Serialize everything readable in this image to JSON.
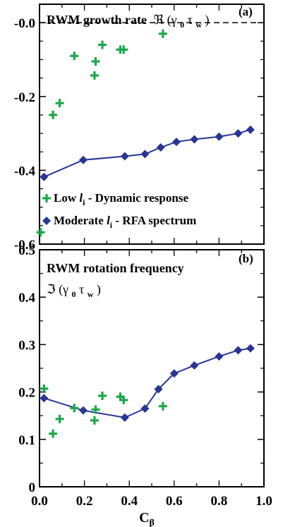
{
  "chart_data": [
    {
      "type": "scatter",
      "panel": "(a)",
      "title": "RWM growth rate",
      "title_symbol": "ℜ",
      "title_args": "(γ",
      "title_sub0": "0",
      "title_tau": " τ",
      "title_subw": "w",
      "title_close": ")",
      "xlim": [
        0.0,
        1.0
      ],
      "ylim": [
        -0.6,
        0.05
      ],
      "yticks": [
        0.0,
        -0.2,
        -0.4,
        -0.6
      ],
      "ytick_labels": [
        "-0.0",
        "-0.2",
        "-0.4",
        "-0.6"
      ],
      "reference_line": 0.0,
      "legend_placement": "bottom",
      "series": [
        {
          "name_prefix": "Low ",
          "name_italic": "l",
          "name_sub": "i",
          "name_suffix": " - Dynamic response",
          "marker": "plus",
          "color": "#1aa84a",
          "points": [
            [
              0.005,
              -0.568
            ],
            [
              0.06,
              -0.25
            ],
            [
              0.09,
              -0.218
            ],
            [
              0.155,
              -0.09
            ],
            [
              0.245,
              -0.143
            ],
            [
              0.25,
              -0.105
            ],
            [
              0.28,
              -0.06
            ],
            [
              0.36,
              -0.073
            ],
            [
              0.375,
              -0.073
            ],
            [
              0.55,
              -0.03
            ]
          ]
        },
        {
          "name_prefix": "Moderate ",
          "name_italic": "l",
          "name_sub": "i",
          "name_suffix": " - RFA spectrum",
          "marker": "diamond",
          "color": "#283593",
          "points": [
            [
              0.02,
              -0.418
            ],
            [
              0.195,
              -0.372
            ],
            [
              0.38,
              -0.362
            ],
            [
              0.47,
              -0.356
            ],
            [
              0.54,
              -0.338
            ],
            [
              0.61,
              -0.323
            ],
            [
              0.69,
              -0.316
            ],
            [
              0.8,
              -0.309
            ],
            [
              0.885,
              -0.3
            ],
            [
              0.94,
              -0.29
            ]
          ]
        }
      ]
    },
    {
      "type": "scatter",
      "panel": "(b)",
      "title": "RWM rotation frequency",
      "title_symbol": "ℑ",
      "title_args": "(γ",
      "title_sub0": "0",
      "title_tau": " τ",
      "title_subw": "w",
      "title_close": ")",
      "xlabel": "C",
      "xlabel_sub": "β",
      "xlim": [
        0.0,
        1.0
      ],
      "ylim": [
        0.0,
        0.5
      ],
      "xticks": [
        0.0,
        0.2,
        0.4,
        0.6,
        0.8,
        1.0
      ],
      "xtick_labels": [
        "0.0",
        "0.2",
        "0.4",
        "0.6",
        "0.8",
        "1.0"
      ],
      "yticks": [
        0.0,
        0.1,
        0.2,
        0.3,
        0.4,
        0.5
      ],
      "ytick_labels": [
        "0",
        "0.1",
        "0.2",
        "0.3",
        "0.4",
        "0.5"
      ],
      "series": [
        {
          "marker": "plus",
          "color": "#1aa84a",
          "points": [
            [
              0.02,
              0.207
            ],
            [
              0.06,
              0.112
            ],
            [
              0.09,
              0.143
            ],
            [
              0.155,
              0.166
            ],
            [
              0.245,
              0.14
            ],
            [
              0.25,
              0.163
            ],
            [
              0.28,
              0.192
            ],
            [
              0.36,
              0.19
            ],
            [
              0.375,
              0.183
            ],
            [
              0.55,
              0.17
            ]
          ]
        },
        {
          "marker": "diamond",
          "color": "#283593",
          "points": [
            [
              0.02,
              0.187
            ],
            [
              0.195,
              0.161
            ],
            [
              0.38,
              0.146
            ],
            [
              0.47,
              0.165
            ],
            [
              0.53,
              0.206
            ],
            [
              0.6,
              0.239
            ],
            [
              0.69,
              0.256
            ],
            [
              0.8,
              0.275
            ],
            [
              0.885,
              0.288
            ],
            [
              0.94,
              0.292
            ]
          ]
        }
      ]
    }
  ]
}
